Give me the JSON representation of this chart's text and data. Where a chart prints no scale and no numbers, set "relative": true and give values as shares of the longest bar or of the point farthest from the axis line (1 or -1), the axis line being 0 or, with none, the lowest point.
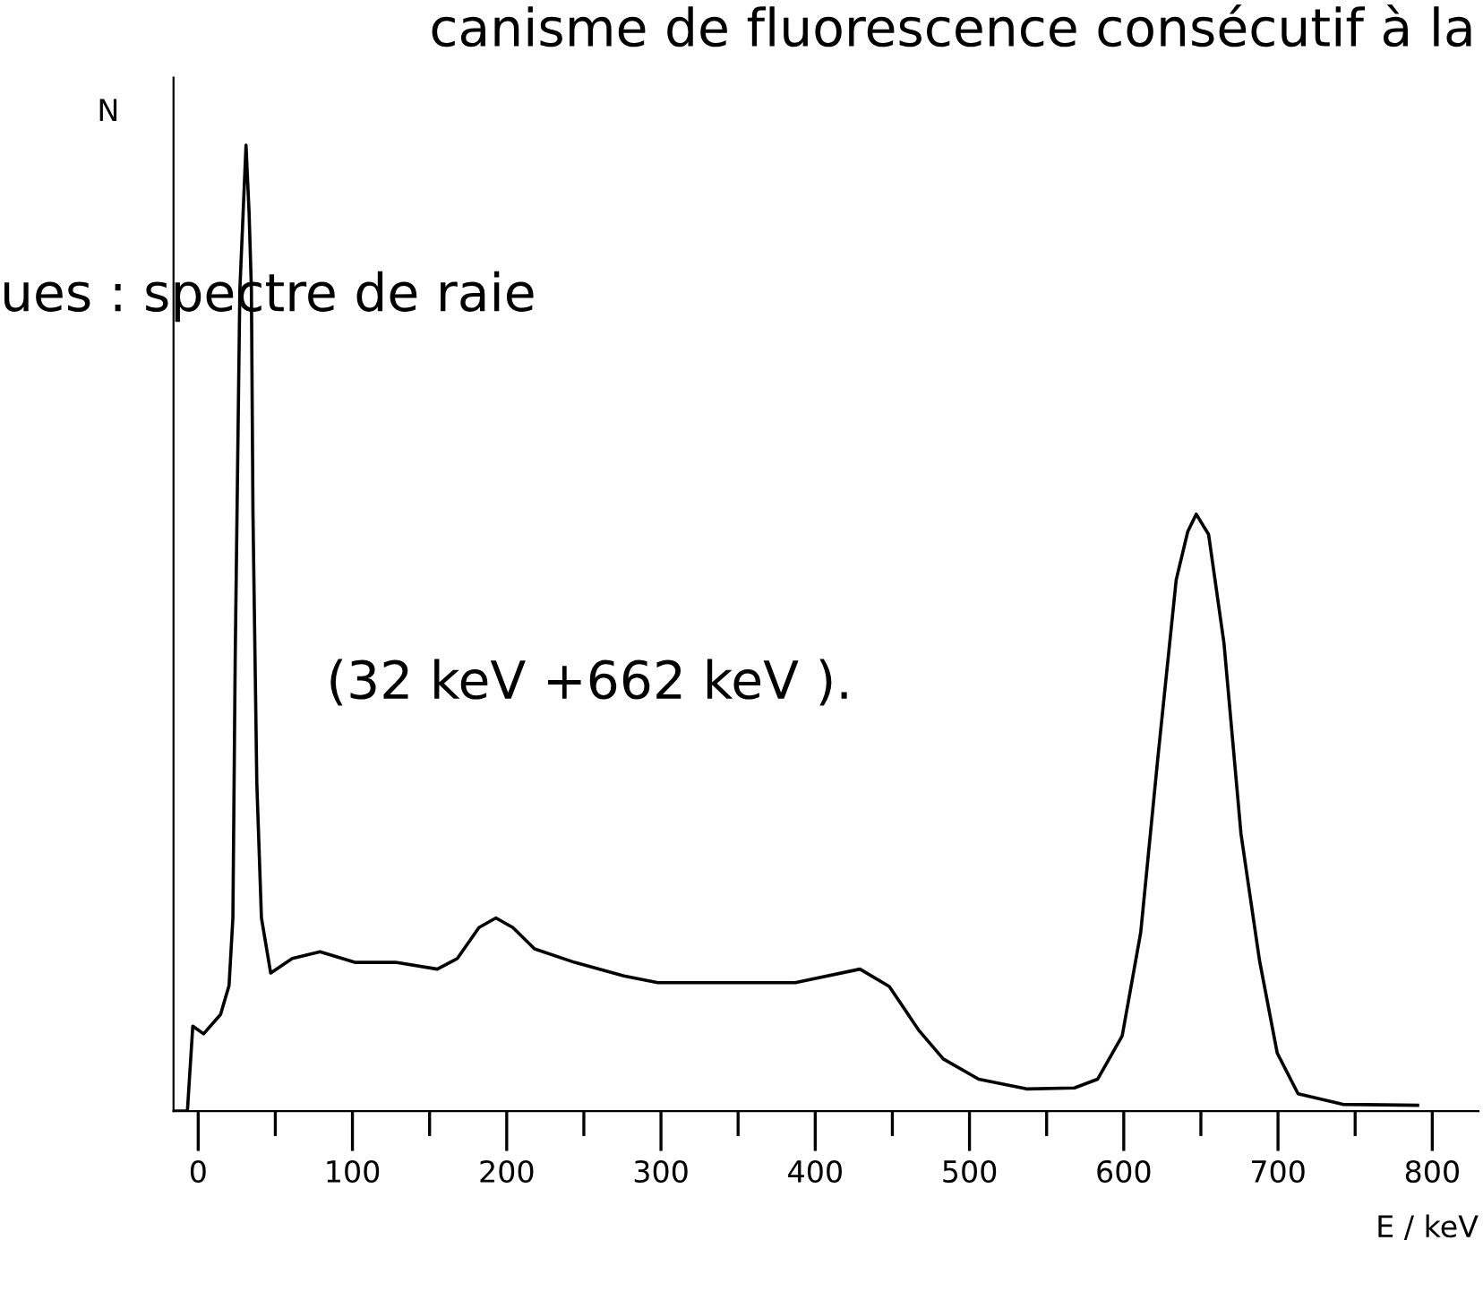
{
  "chart_data": {
    "type": "line",
    "relative": true,
    "ylabel": "N",
    "xlabel": "E / keV",
    "annotations": [
      "canisme de fluorescence consécutif à la",
      "ues : spectre de raie",
      "(32 keV +662 keV )."
    ],
    "xlim": [
      -16,
      830
    ],
    "xticks": [
      0,
      {
        "value": 50,
        "label": null
      },
      100,
      {
        "value": 150,
        "label": null
      },
      200,
      {
        "value": 250,
        "label": null
      },
      300,
      {
        "value": 350,
        "label": null
      },
      400,
      {
        "value": 450,
        "label": null
      },
      500,
      {
        "value": 550,
        "label": null
      },
      600,
      {
        "value": 650,
        "label": null
      },
      700,
      {
        "value": 750,
        "label": null
      },
      800
    ],
    "grid": false,
    "legend": false,
    "marker": "none",
    "line_style": "solid",
    "series": [
      {
        "color": "#000000",
        "x": [
          -14.5,
          -7,
          -3.5,
          3.5,
          14.5,
          20,
          22.5,
          24,
          27,
          31,
          33,
          34.5,
          35.5,
          38,
          41,
          47,
          61,
          79,
          101.5,
          128,
          155,
          168,
          182,
          193,
          204,
          218,
          244,
          276,
          298,
          343,
          387,
          429,
          448,
          467,
          483,
          506,
          537,
          568,
          583,
          599,
          611,
          622,
          634,
          641.5,
          647,
          655,
          665,
          676,
          688,
          699.5,
          713,
          742,
          790.5
        ],
        "values": [
          0,
          0,
          0.088,
          0.08,
          0.1,
          0.13,
          0.2,
          0.47,
          0.85,
          1.0,
          0.93,
          0.85,
          0.62,
          0.34,
          0.2,
          0.143,
          0.158,
          0.165,
          0.154,
          0.154,
          0.147,
          0.158,
          0.19,
          0.2,
          0.19,
          0.168,
          0.154,
          0.14,
          0.133,
          0.133,
          0.133,
          0.147,
          0.129,
          0.084,
          0.054,
          0.033,
          0.023,
          0.024,
          0.033,
          0.078,
          0.185,
          0.364,
          0.55,
          0.6,
          0.618,
          0.597,
          0.484,
          0.287,
          0.156,
          0.06,
          0.018,
          0.007,
          0.006
        ]
      }
    ]
  }
}
